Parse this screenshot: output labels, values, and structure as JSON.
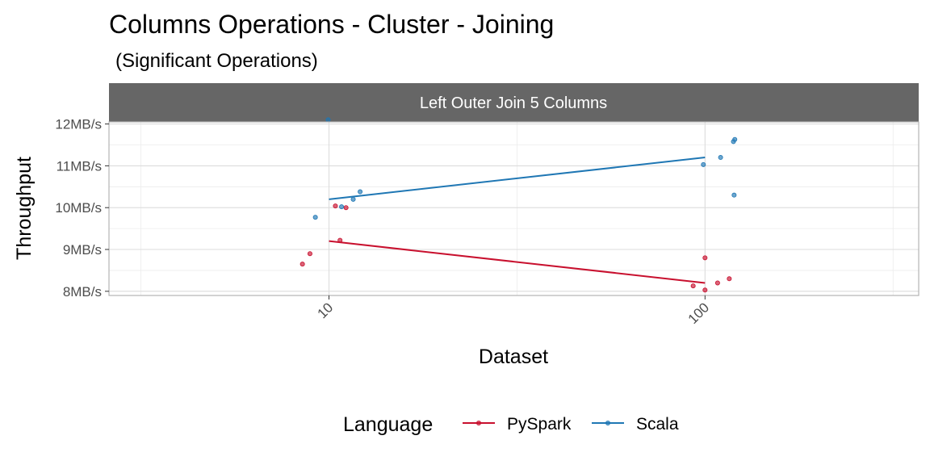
{
  "chart_data": {
    "type": "line",
    "title": "Columns Operations - Cluster - Joining",
    "subtitle": "(Significant Operations)",
    "facet_label": "Left Outer Join 5 Columns",
    "xlabel": "Dataset",
    "ylabel": "Throughput",
    "x_scale": "log10",
    "x_ticks": [
      10,
      100
    ],
    "x_tick_labels": [
      "10",
      "100"
    ],
    "xlim": [
      2.6,
      370
    ],
    "ylim": [
      7.9,
      12.05
    ],
    "y_ticks": [
      8,
      9,
      10,
      11,
      12
    ],
    "y_tick_labels": [
      "8MB/s",
      "9MB/s",
      "10MB/s",
      "11MB/s",
      "12MB/s"
    ],
    "grid": true,
    "legend": {
      "title": "Language",
      "position": "bottom"
    },
    "series": [
      {
        "name": "PySpark",
        "color": "#C8102E",
        "line": {
          "x": [
            10,
            100
          ],
          "y": [
            9.2,
            8.2
          ]
        },
        "points": [
          {
            "x": 8.5,
            "y": 8.65
          },
          {
            "x": 8.9,
            "y": 8.9
          },
          {
            "x": 10.4,
            "y": 10.04
          },
          {
            "x": 10.7,
            "y": 9.22
          },
          {
            "x": 11.1,
            "y": 10.0
          },
          {
            "x": 93.0,
            "y": 8.13
          },
          {
            "x": 100.0,
            "y": 8.8
          },
          {
            "x": 100.0,
            "y": 8.03
          },
          {
            "x": 108.0,
            "y": 8.2
          },
          {
            "x": 116.0,
            "y": 8.3
          }
        ]
      },
      {
        "name": "Scala",
        "color": "#1F77B4",
        "line": {
          "x": [
            10,
            100
          ],
          "y": [
            10.2,
            11.2
          ]
        },
        "points": [
          {
            "x": 9.2,
            "y": 9.77
          },
          {
            "x": 9.95,
            "y": 12.1
          },
          {
            "x": 10.8,
            "y": 10.02
          },
          {
            "x": 11.6,
            "y": 10.2
          },
          {
            "x": 12.1,
            "y": 10.38
          },
          {
            "x": 99.0,
            "y": 11.03
          },
          {
            "x": 110.0,
            "y": 11.2
          },
          {
            "x": 119.0,
            "y": 11.58
          },
          {
            "x": 120.0,
            "y": 11.63
          },
          {
            "x": 119.5,
            "y": 10.3
          }
        ]
      }
    ]
  }
}
